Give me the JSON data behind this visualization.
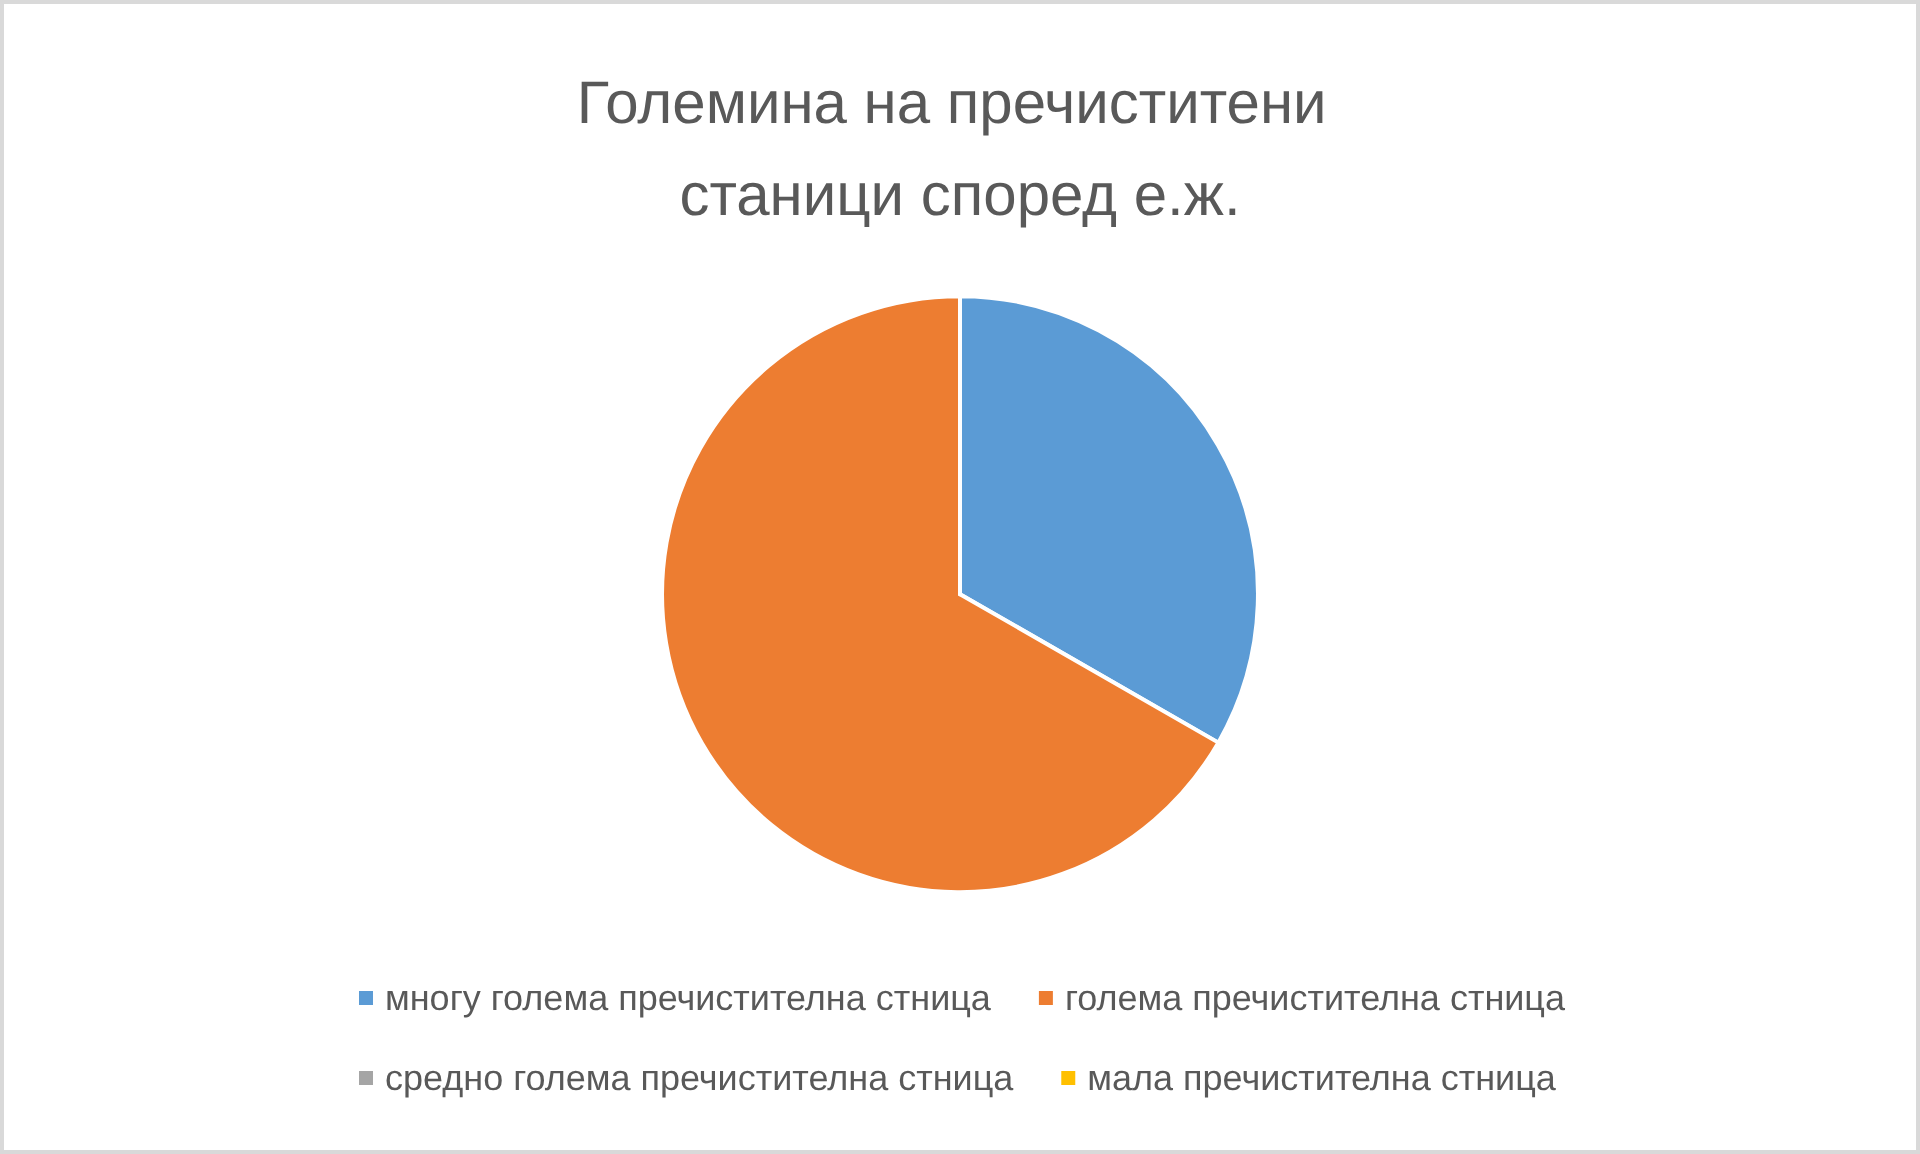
{
  "chart_data": {
    "type": "pie",
    "title": "Големина на пречиститени станици според е.ж.",
    "categories": [
      "многу голема пречистителна стница",
      "голема пречистителна стница",
      "средно голема пречистителна стница",
      "мала пречистителна стница"
    ],
    "values": [
      33.3,
      66.7,
      0,
      0
    ],
    "colors": [
      "#5b9bd5",
      "#ed7d31",
      "#a5a5a5",
      "#ffc000"
    ],
    "legend": "bottom"
  }
}
